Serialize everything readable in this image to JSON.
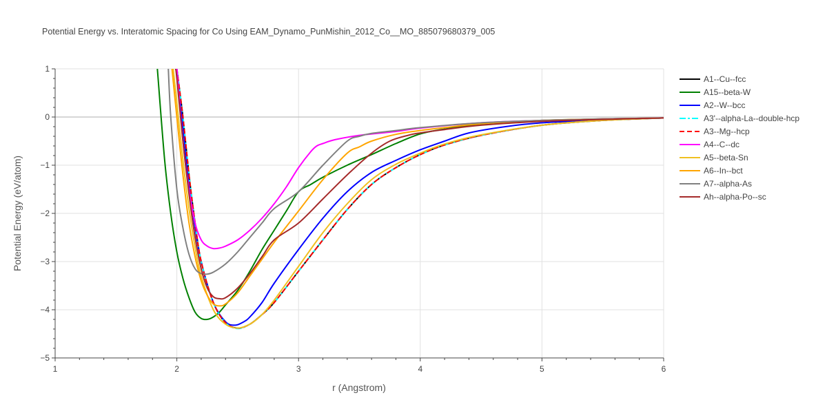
{
  "chart_data": {
    "type": "line",
    "title": "Potential Energy vs. Interatomic Spacing for Co Using EAM_Dynamo_PunMishin_2012_Co__MO_885079680379_005",
    "xlabel": "r (Angstrom)",
    "ylabel": "Potential Energy (eV/atom)",
    "xlim": [
      1,
      6
    ],
    "ylim": [
      -5,
      1
    ],
    "xticks": [
      1,
      2,
      3,
      4,
      5,
      6
    ],
    "yticks": [
      1,
      0,
      -1,
      -2,
      -3,
      -4,
      -5
    ],
    "ytick_labels": [
      "1",
      "0",
      "−1",
      "−2",
      "−3",
      "−4",
      "−5"
    ],
    "grid": true,
    "legend_position": "right",
    "series": [
      {
        "name": "A1--Cu--fcc",
        "color": "#000000",
        "dash": "solid",
        "x": [
          2.0,
          2.05,
          2.1,
          2.15,
          2.2,
          2.3,
          2.4,
          2.5,
          2.6,
          2.7,
          2.8,
          3.0,
          3.2,
          3.4,
          3.6,
          3.8,
          4.0,
          4.2,
          4.5,
          5.0,
          5.5,
          6.0
        ],
        "y": [
          1.0,
          0.0,
          -1.2,
          -2.2,
          -3.0,
          -3.85,
          -4.27,
          -4.38,
          -4.3,
          -4.1,
          -3.85,
          -3.2,
          -2.55,
          -1.92,
          -1.4,
          -1.05,
          -0.78,
          -0.58,
          -0.38,
          -0.17,
          -0.07,
          -0.02
        ]
      },
      {
        "name": "A15--beta-W",
        "color": "#008000",
        "dash": "solid",
        "x": [
          1.84,
          1.9,
          1.95,
          2.0,
          2.05,
          2.1,
          2.15,
          2.2,
          2.25,
          2.3,
          2.35,
          2.4,
          2.5,
          2.6,
          2.7,
          2.8,
          2.9,
          3.0,
          3.1,
          3.2,
          3.4,
          3.6,
          3.8,
          4.0,
          4.2,
          4.5,
          5.0,
          5.5,
          6.0
        ],
        "y": [
          1.0,
          -0.9,
          -2.0,
          -2.8,
          -3.35,
          -3.75,
          -4.05,
          -4.18,
          -4.2,
          -4.15,
          -4.05,
          -3.9,
          -3.6,
          -3.2,
          -2.75,
          -2.35,
          -1.95,
          -1.55,
          -1.4,
          -1.25,
          -1.0,
          -0.78,
          -0.55,
          -0.35,
          -0.25,
          -0.15,
          -0.07,
          -0.04,
          -0.02
        ]
      },
      {
        "name": "A2--W--bcc",
        "color": "#0000ff",
        "dash": "solid",
        "x": [
          2.0,
          2.05,
          2.1,
          2.15,
          2.2,
          2.3,
          2.4,
          2.48,
          2.55,
          2.6,
          2.7,
          2.8,
          3.0,
          3.2,
          3.4,
          3.6,
          3.8,
          4.0,
          4.2,
          4.4,
          4.7,
          5.0,
          5.5,
          6.0
        ],
        "y": [
          1.0,
          -0.2,
          -1.4,
          -2.3,
          -3.0,
          -3.85,
          -4.25,
          -4.32,
          -4.25,
          -4.15,
          -3.85,
          -3.45,
          -2.75,
          -2.1,
          -1.55,
          -1.15,
          -0.9,
          -0.68,
          -0.5,
          -0.33,
          -0.2,
          -0.12,
          -0.06,
          -0.02
        ]
      },
      {
        "name": "A3'--alpha-La--double-hcp",
        "color": "#00ffff",
        "dash": "dashdot",
        "x": [
          2.0,
          2.05,
          2.1,
          2.15,
          2.2,
          2.3,
          2.4,
          2.5,
          2.6,
          2.7,
          2.8,
          3.0,
          3.2,
          3.4,
          3.6,
          3.8,
          4.0,
          4.2,
          4.5,
          5.0,
          5.5,
          6.0
        ],
        "y": [
          1.0,
          0.0,
          -1.2,
          -2.2,
          -3.0,
          -3.85,
          -4.27,
          -4.39,
          -4.3,
          -4.1,
          -3.85,
          -3.2,
          -2.55,
          -1.92,
          -1.4,
          -1.05,
          -0.78,
          -0.58,
          -0.38,
          -0.17,
          -0.07,
          -0.02
        ]
      },
      {
        "name": "A3--Mg--hcp",
        "color": "#ff0000",
        "dash": "dash",
        "x": [
          2.0,
          2.05,
          2.1,
          2.15,
          2.2,
          2.3,
          2.4,
          2.5,
          2.6,
          2.7,
          2.8,
          3.0,
          3.2,
          3.4,
          3.6,
          3.8,
          4.0,
          4.2,
          4.5,
          5.0,
          5.5,
          6.0
        ],
        "y": [
          1.0,
          0.0,
          -1.2,
          -2.2,
          -3.0,
          -3.85,
          -4.27,
          -4.38,
          -4.3,
          -4.1,
          -3.85,
          -3.2,
          -2.55,
          -1.92,
          -1.4,
          -1.05,
          -0.78,
          -0.58,
          -0.38,
          -0.17,
          -0.07,
          -0.02
        ]
      },
      {
        "name": "A4--C--dc",
        "color": "#ff00ff",
        "dash": "solid",
        "x": [
          2.0,
          2.05,
          2.1,
          2.15,
          2.2,
          2.25,
          2.3,
          2.35,
          2.4,
          2.5,
          2.6,
          2.7,
          2.8,
          2.9,
          3.0,
          3.1,
          3.15,
          3.2,
          3.3,
          3.5,
          3.8,
          4.0,
          4.5,
          5.0,
          5.5,
          6.0
        ],
        "y": [
          1.0,
          -0.5,
          -1.5,
          -2.2,
          -2.55,
          -2.68,
          -2.73,
          -2.72,
          -2.68,
          -2.55,
          -2.35,
          -2.1,
          -1.8,
          -1.45,
          -1.05,
          -0.72,
          -0.6,
          -0.55,
          -0.47,
          -0.38,
          -0.3,
          -0.23,
          -0.12,
          -0.07,
          -0.04,
          -0.02
        ]
      },
      {
        "name": "A5--beta-Sn",
        "color": "#f0c020",
        "dash": "solid",
        "x": [
          1.97,
          2.0,
          2.05,
          2.1,
          2.15,
          2.2,
          2.3,
          2.4,
          2.5,
          2.6,
          2.7,
          2.8,
          3.0,
          3.2,
          3.4,
          3.6,
          3.8,
          4.0,
          4.2,
          4.5,
          5.0,
          5.5,
          6.0
        ],
        "y": [
          1.0,
          0.3,
          -0.9,
          -1.9,
          -2.7,
          -3.3,
          -4.0,
          -4.3,
          -4.38,
          -4.3,
          -4.1,
          -3.8,
          -3.1,
          -2.4,
          -1.8,
          -1.3,
          -0.98,
          -0.75,
          -0.56,
          -0.37,
          -0.17,
          -0.07,
          -0.02
        ]
      },
      {
        "name": "A6--In--bct",
        "color": "#ffa500",
        "dash": "solid",
        "x": [
          1.96,
          2.0,
          2.05,
          2.1,
          2.15,
          2.2,
          2.25,
          2.3,
          2.35,
          2.4,
          2.5,
          2.6,
          2.7,
          2.8,
          3.0,
          3.2,
          3.4,
          3.5,
          3.6,
          3.8,
          4.0,
          4.2,
          4.5,
          5.0,
          5.5,
          6.0
        ],
        "y": [
          1.0,
          0.0,
          -1.2,
          -2.2,
          -2.9,
          -3.4,
          -3.7,
          -3.88,
          -3.92,
          -3.88,
          -3.65,
          -3.3,
          -2.95,
          -2.6,
          -1.95,
          -1.3,
          -0.75,
          -0.62,
          -0.5,
          -0.36,
          -0.28,
          -0.22,
          -0.14,
          -0.07,
          -0.04,
          -0.02
        ]
      },
      {
        "name": "A7--alpha-As",
        "color": "#808080",
        "dash": "solid",
        "x": [
          1.93,
          1.95,
          2.0,
          2.05,
          2.1,
          2.15,
          2.2,
          2.25,
          2.3,
          2.4,
          2.5,
          2.6,
          2.7,
          2.8,
          3.0,
          3.2,
          3.4,
          3.5,
          3.6,
          3.8,
          4.0,
          4.5,
          5.0,
          5.5,
          6.0
        ],
        "y": [
          1.0,
          0.0,
          -1.5,
          -2.3,
          -2.85,
          -3.15,
          -3.25,
          -3.26,
          -3.22,
          -3.05,
          -2.8,
          -2.5,
          -2.2,
          -1.9,
          -1.55,
          -1.0,
          -0.5,
          -0.4,
          -0.34,
          -0.28,
          -0.22,
          -0.12,
          -0.07,
          -0.04,
          -0.02
        ]
      },
      {
        "name": "Ah--alpha-Po--sc",
        "color": "#a52a2a",
        "dash": "solid",
        "x": [
          1.99,
          2.0,
          2.05,
          2.1,
          2.15,
          2.2,
          2.25,
          2.3,
          2.35,
          2.4,
          2.5,
          2.6,
          2.7,
          2.8,
          3.0,
          3.2,
          3.4,
          3.6,
          3.75,
          3.9,
          4.0,
          4.2,
          4.5,
          5.0,
          5.5,
          6.0
        ],
        "y": [
          1.0,
          0.8,
          -0.5,
          -1.6,
          -2.5,
          -3.15,
          -3.55,
          -3.73,
          -3.77,
          -3.75,
          -3.55,
          -3.25,
          -2.9,
          -2.55,
          -2.2,
          -1.7,
          -1.2,
          -0.75,
          -0.5,
          -0.38,
          -0.33,
          -0.26,
          -0.17,
          -0.09,
          -0.05,
          -0.02
        ]
      }
    ]
  }
}
